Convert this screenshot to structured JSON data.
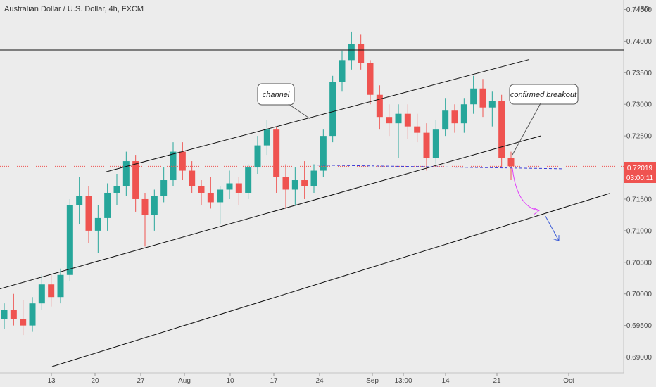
{
  "header": {
    "title": "Australian Dollar / U.S. Dollar, 4h, FXCM",
    "currency": "USD"
  },
  "chart_data": {
    "type": "candlestick",
    "symbol": "AUD/USD",
    "timeframe": "4h",
    "source": "FXCM",
    "y_ticks": [
      "0.74500",
      "0.74000",
      "0.73500",
      "0.73000",
      "0.72500",
      "0.72000",
      "0.71500",
      "0.71000",
      "0.70500",
      "0.70000",
      "0.69500",
      "0.69000"
    ],
    "x_ticks": [
      "13",
      "20",
      "27",
      "Aug",
      "10",
      "17",
      "24",
      "Sep",
      "13:00",
      "14",
      "21",
      "Oct"
    ],
    "ylim": [
      0.6875,
      0.7465
    ],
    "current_price": "0.72019",
    "countdown": "03:00:11",
    "colors": {
      "up": "#26a69a",
      "down": "#ef5350",
      "line": "#111111",
      "price_line": "#ef5350",
      "support": "#3b3bd6",
      "projection_pink": "#e040fb",
      "projection_blue": "#3b5bd6"
    },
    "candles": [
      {
        "d": "Jul 10",
        "o": 0.696,
        "h": 0.6985,
        "l": 0.6945,
        "c": 0.6975
      },
      {
        "d": "Jul 13",
        "o": 0.6975,
        "h": 0.7,
        "l": 0.695,
        "c": 0.696
      },
      {
        "d": "Jul 14",
        "o": 0.696,
        "h": 0.699,
        "l": 0.6935,
        "c": 0.695
      },
      {
        "d": "Jul 15",
        "o": 0.695,
        "h": 0.6995,
        "l": 0.694,
        "c": 0.6985
      },
      {
        "d": "Jul 16",
        "o": 0.6985,
        "h": 0.703,
        "l": 0.6975,
        "c": 0.7015
      },
      {
        "d": "Jul 17",
        "o": 0.7015,
        "h": 0.703,
        "l": 0.698,
        "c": 0.6995
      },
      {
        "d": "Jul 20",
        "o": 0.6995,
        "h": 0.704,
        "l": 0.6985,
        "c": 0.703
      },
      {
        "d": "Jul 21",
        "o": 0.703,
        "h": 0.715,
        "l": 0.702,
        "c": 0.714
      },
      {
        "d": "Jul 22",
        "o": 0.714,
        "h": 0.7185,
        "l": 0.711,
        "c": 0.7155
      },
      {
        "d": "Jul 23",
        "o": 0.7155,
        "h": 0.717,
        "l": 0.708,
        "c": 0.71
      },
      {
        "d": "Jul 24",
        "o": 0.71,
        "h": 0.714,
        "l": 0.7065,
        "c": 0.712
      },
      {
        "d": "Jul 27",
        "o": 0.712,
        "h": 0.7175,
        "l": 0.71,
        "c": 0.716
      },
      {
        "d": "Jul 28",
        "o": 0.716,
        "h": 0.719,
        "l": 0.714,
        "c": 0.717
      },
      {
        "d": "Jul 29",
        "o": 0.717,
        "h": 0.7225,
        "l": 0.7155,
        "c": 0.721
      },
      {
        "d": "Jul 30",
        "o": 0.721,
        "h": 0.722,
        "l": 0.713,
        "c": 0.715
      },
      {
        "d": "Jul 31",
        "o": 0.715,
        "h": 0.716,
        "l": 0.7075,
        "c": 0.7125
      },
      {
        "d": "Aug 3",
        "o": 0.7125,
        "h": 0.7165,
        "l": 0.71,
        "c": 0.7155
      },
      {
        "d": "Aug 4",
        "o": 0.7155,
        "h": 0.72,
        "l": 0.7145,
        "c": 0.718
      },
      {
        "d": "Aug 5",
        "o": 0.718,
        "h": 0.724,
        "l": 0.717,
        "c": 0.7225
      },
      {
        "d": "Aug 6",
        "o": 0.7225,
        "h": 0.724,
        "l": 0.718,
        "c": 0.7195
      },
      {
        "d": "Aug 7",
        "o": 0.7195,
        "h": 0.721,
        "l": 0.716,
        "c": 0.717
      },
      {
        "d": "Aug 10",
        "o": 0.717,
        "h": 0.718,
        "l": 0.714,
        "c": 0.716
      },
      {
        "d": "Aug 11",
        "o": 0.716,
        "h": 0.7185,
        "l": 0.7135,
        "c": 0.7145
      },
      {
        "d": "Aug 12",
        "o": 0.7145,
        "h": 0.717,
        "l": 0.711,
        "c": 0.7165
      },
      {
        "d": "Aug 13",
        "o": 0.7165,
        "h": 0.7195,
        "l": 0.715,
        "c": 0.7175
      },
      {
        "d": "Aug 14",
        "o": 0.7175,
        "h": 0.7185,
        "l": 0.714,
        "c": 0.716
      },
      {
        "d": "Aug 17",
        "o": 0.716,
        "h": 0.7205,
        "l": 0.715,
        "c": 0.72
      },
      {
        "d": "Aug 18",
        "o": 0.72,
        "h": 0.725,
        "l": 0.719,
        "c": 0.7235
      },
      {
        "d": "Aug 19",
        "o": 0.7235,
        "h": 0.7275,
        "l": 0.722,
        "c": 0.726
      },
      {
        "d": "Aug 20",
        "o": 0.726,
        "h": 0.7265,
        "l": 0.716,
        "c": 0.7185
      },
      {
        "d": "Aug 21",
        "o": 0.7185,
        "h": 0.7205,
        "l": 0.7135,
        "c": 0.7165
      },
      {
        "d": "Aug 24",
        "o": 0.7165,
        "h": 0.72,
        "l": 0.714,
        "c": 0.718
      },
      {
        "d": "Aug 25",
        "o": 0.718,
        "h": 0.721,
        "l": 0.715,
        "c": 0.717
      },
      {
        "d": "Aug 26",
        "o": 0.717,
        "h": 0.7205,
        "l": 0.716,
        "c": 0.7195
      },
      {
        "d": "Aug 27",
        "o": 0.7195,
        "h": 0.726,
        "l": 0.7185,
        "c": 0.725
      },
      {
        "d": "Aug 28",
        "o": 0.725,
        "h": 0.7345,
        "l": 0.724,
        "c": 0.7335
      },
      {
        "d": "Aug 31",
        "o": 0.7335,
        "h": 0.7385,
        "l": 0.732,
        "c": 0.737
      },
      {
        "d": "Sep 1",
        "o": 0.737,
        "h": 0.7415,
        "l": 0.7355,
        "c": 0.7395
      },
      {
        "d": "Sep 2",
        "o": 0.7395,
        "h": 0.741,
        "l": 0.7355,
        "c": 0.7365
      },
      {
        "d": "Sep 3",
        "o": 0.7365,
        "h": 0.737,
        "l": 0.73,
        "c": 0.7315
      },
      {
        "d": "Sep 4",
        "o": 0.7315,
        "h": 0.733,
        "l": 0.726,
        "c": 0.728
      },
      {
        "d": "Sep 7",
        "o": 0.728,
        "h": 0.73,
        "l": 0.725,
        "c": 0.727
      },
      {
        "d": "Sep 8",
        "o": 0.727,
        "h": 0.73,
        "l": 0.7215,
        "c": 0.7285
      },
      {
        "d": "Sep 9",
        "o": 0.7285,
        "h": 0.73,
        "l": 0.7245,
        "c": 0.7265
      },
      {
        "d": "Sep 10",
        "o": 0.7265,
        "h": 0.7285,
        "l": 0.724,
        "c": 0.7255
      },
      {
        "d": "Sep 11",
        "o": 0.7255,
        "h": 0.727,
        "l": 0.7195,
        "c": 0.7215
      },
      {
        "d": "Sep 14",
        "o": 0.7215,
        "h": 0.7275,
        "l": 0.7205,
        "c": 0.726
      },
      {
        "d": "Sep 15",
        "o": 0.726,
        "h": 0.731,
        "l": 0.725,
        "c": 0.729
      },
      {
        "d": "Sep 16",
        "o": 0.729,
        "h": 0.73,
        "l": 0.7255,
        "c": 0.727
      },
      {
        "d": "Sep 17",
        "o": 0.727,
        "h": 0.731,
        "l": 0.7255,
        "c": 0.73
      },
      {
        "d": "Sep 18",
        "o": 0.73,
        "h": 0.7345,
        "l": 0.7285,
        "c": 0.7325
      },
      {
        "d": "Sep 19",
        "o": 0.7325,
        "h": 0.734,
        "l": 0.728,
        "c": 0.7295
      },
      {
        "d": "Sep 21",
        "o": 0.7295,
        "h": 0.732,
        "l": 0.7265,
        "c": 0.7305
      },
      {
        "d": "Sep 22",
        "o": 0.7305,
        "h": 0.7315,
        "l": 0.72,
        "c": 0.7215
      },
      {
        "d": "Sep 23",
        "o": 0.7215,
        "h": 0.7225,
        "l": 0.718,
        "c": 0.7202
      }
    ],
    "annotations": [
      {
        "text": "channel"
      },
      {
        "text": "confirmed breakout"
      }
    ]
  }
}
